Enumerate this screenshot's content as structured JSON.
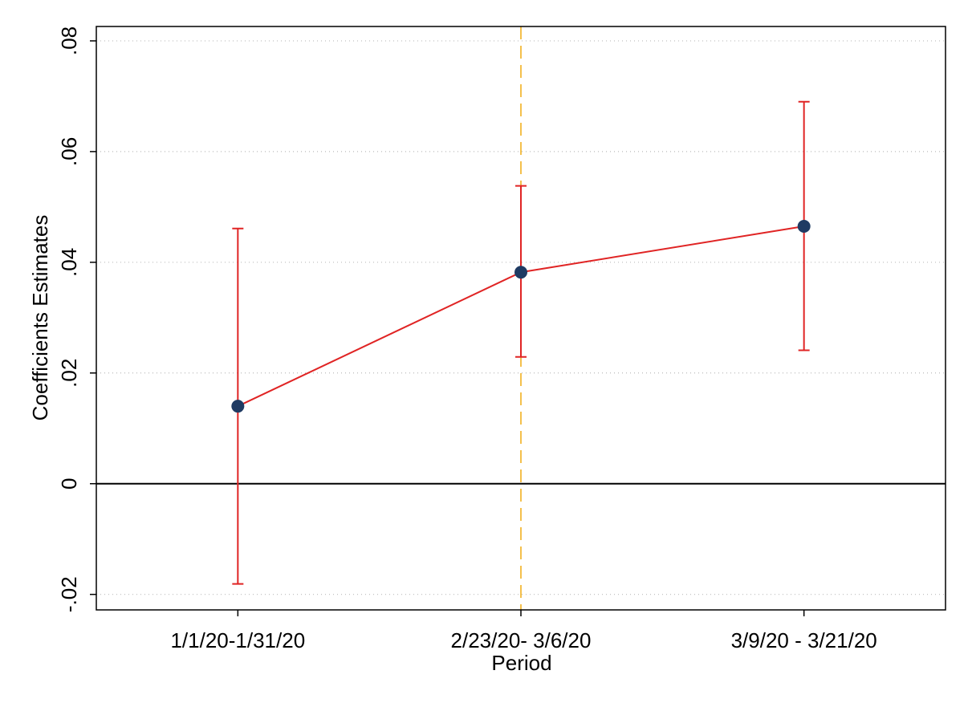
{
  "chart_data": {
    "type": "line",
    "x_label": "Period",
    "y_label": "Coefficients Estimates",
    "categories": [
      "1/1/20-1/31/20",
      "2/23/20- 3/6/20",
      "3/9/20 - 3/21/20"
    ],
    "series": [
      {
        "values": [
          0.014,
          0.0382,
          0.0465
        ],
        "lower": [
          -0.0181,
          0.0229,
          0.0241
        ],
        "upper": [
          0.0461,
          0.0538,
          0.069
        ],
        "color": "#e02424",
        "marker_color": "#1f3b63"
      }
    ],
    "ylim": [
      -0.0228,
      0.0826
    ],
    "yticks": [
      {
        "value": -0.02,
        "label": "-.02"
      },
      {
        "value": 0,
        "label": "0"
      },
      {
        "value": 0.02,
        "label": ".02"
      },
      {
        "value": 0.04,
        "label": ".04"
      },
      {
        "value": 0.06,
        "label": ".06"
      },
      {
        "value": 0.08,
        "label": ".08"
      }
    ],
    "grid": true,
    "hline": 0,
    "vline_category": 1,
    "vline_color": "#f4c04c"
  }
}
